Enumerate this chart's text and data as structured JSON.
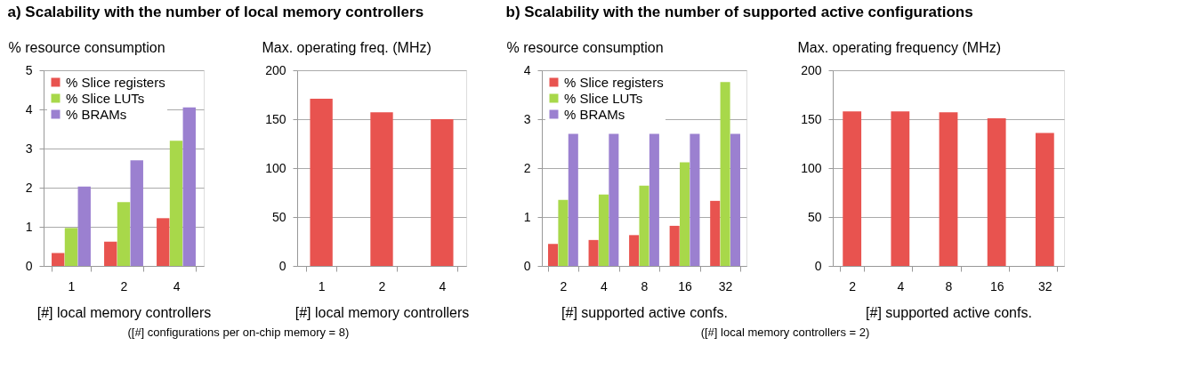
{
  "chart_data": [
    {
      "type": "bar",
      "title": "a) Scalability with the number of local memory controllers",
      "ylabel": "% resource consumption",
      "xlabel": "[#] local memory controllers",
      "categories": [
        "1",
        "2",
        "4"
      ],
      "series": [
        {
          "name": "% Slice registers",
          "color": "#e8534f",
          "values": [
            0.33,
            0.62,
            1.22
          ]
        },
        {
          "name": "% Slice LUTs",
          "color": "#a8d84a",
          "values": [
            0.97,
            1.63,
            3.2
          ]
        },
        {
          "name": "% BRAMs",
          "color": "#9b80d0",
          "values": [
            2.03,
            2.7,
            4.05
          ]
        }
      ],
      "ylim": [
        0,
        5
      ],
      "yticks": [
        0,
        1,
        2,
        3,
        4,
        5
      ],
      "grid": "y",
      "legend": "top left",
      "annotations": [
        "([#] configurations per on-chip memory = 8)"
      ]
    },
    {
      "type": "bar",
      "ylabel": "Max. operating freq. (MHz)",
      "xlabel": "[#] local memory controllers",
      "categories": [
        "1",
        "2",
        "4"
      ],
      "series": [
        {
          "color": "#e8534f",
          "values": [
            171,
            157,
            150
          ]
        }
      ],
      "ylim": [
        0,
        200
      ],
      "yticks": [
        0,
        50,
        100,
        150,
        200
      ],
      "grid": "y"
    },
    {
      "type": "bar",
      "title": "b) Scalability with the number of supported active configurations",
      "ylabel": "% resource consumption",
      "xlabel": "[#] supported active confs.",
      "categories": [
        "2",
        "4",
        "8",
        "16",
        "32"
      ],
      "series": [
        {
          "name": "% Slice registers",
          "color": "#e8534f",
          "values": [
            0.45,
            0.53,
            0.63,
            0.82,
            1.33
          ]
        },
        {
          "name": "% Slice LUTs",
          "color": "#a8d84a",
          "values": [
            1.35,
            1.46,
            1.64,
            2.12,
            3.76
          ]
        },
        {
          "name": "% BRAMs",
          "color": "#9b80d0",
          "values": [
            2.7,
            2.7,
            2.7,
            2.7,
            2.7
          ]
        }
      ],
      "ylim": [
        0,
        4
      ],
      "yticks": [
        0,
        1,
        2,
        3,
        4
      ],
      "grid": "y",
      "legend": "top left",
      "annotations": [
        "([#] local memory controllers = 2)"
      ]
    },
    {
      "type": "bar",
      "ylabel": "Max. operating frequency (MHz)",
      "xlabel": "[#] supported active confs.",
      "categories": [
        "2",
        "4",
        "8",
        "16",
        "32"
      ],
      "series": [
        {
          "color": "#e8534f",
          "values": [
            158,
            158,
            157,
            151,
            136
          ]
        }
      ],
      "ylim": [
        0,
        200
      ],
      "yticks": [
        0,
        50,
        100,
        150,
        200
      ],
      "grid": "y"
    }
  ]
}
